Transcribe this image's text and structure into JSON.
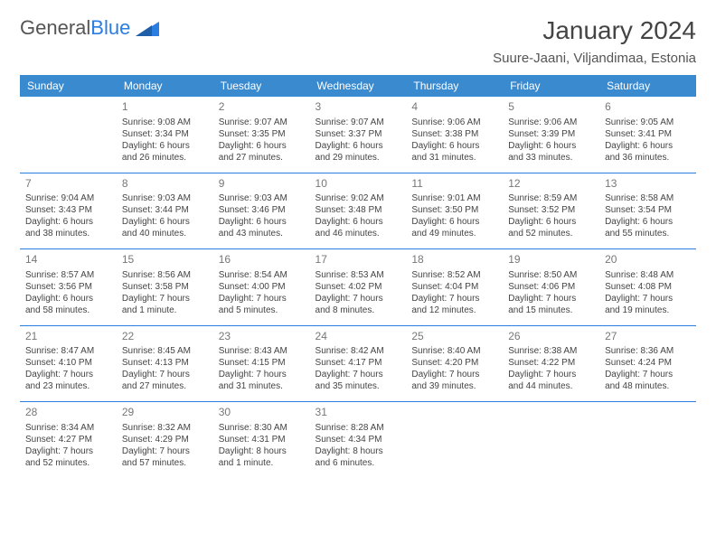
{
  "brand": {
    "name_part1": "General",
    "name_part2": "Blue"
  },
  "title": "January 2024",
  "location": "Suure-Jaani, Viljandimaa, Estonia",
  "colors": {
    "header_bg": "#3a8ad0",
    "rule": "#2a7de1",
    "text": "#444444",
    "muted": "#777777"
  },
  "day_headers": [
    "Sunday",
    "Monday",
    "Tuesday",
    "Wednesday",
    "Thursday",
    "Friday",
    "Saturday"
  ],
  "weeks": [
    [
      null,
      {
        "n": "1",
        "sr": "Sunrise: 9:08 AM",
        "ss": "Sunset: 3:34 PM",
        "d1": "Daylight: 6 hours",
        "d2": "and 26 minutes."
      },
      {
        "n": "2",
        "sr": "Sunrise: 9:07 AM",
        "ss": "Sunset: 3:35 PM",
        "d1": "Daylight: 6 hours",
        "d2": "and 27 minutes."
      },
      {
        "n": "3",
        "sr": "Sunrise: 9:07 AM",
        "ss": "Sunset: 3:37 PM",
        "d1": "Daylight: 6 hours",
        "d2": "and 29 minutes."
      },
      {
        "n": "4",
        "sr": "Sunrise: 9:06 AM",
        "ss": "Sunset: 3:38 PM",
        "d1": "Daylight: 6 hours",
        "d2": "and 31 minutes."
      },
      {
        "n": "5",
        "sr": "Sunrise: 9:06 AM",
        "ss": "Sunset: 3:39 PM",
        "d1": "Daylight: 6 hours",
        "d2": "and 33 minutes."
      },
      {
        "n": "6",
        "sr": "Sunrise: 9:05 AM",
        "ss": "Sunset: 3:41 PM",
        "d1": "Daylight: 6 hours",
        "d2": "and 36 minutes."
      }
    ],
    [
      {
        "n": "7",
        "sr": "Sunrise: 9:04 AM",
        "ss": "Sunset: 3:43 PM",
        "d1": "Daylight: 6 hours",
        "d2": "and 38 minutes."
      },
      {
        "n": "8",
        "sr": "Sunrise: 9:03 AM",
        "ss": "Sunset: 3:44 PM",
        "d1": "Daylight: 6 hours",
        "d2": "and 40 minutes."
      },
      {
        "n": "9",
        "sr": "Sunrise: 9:03 AM",
        "ss": "Sunset: 3:46 PM",
        "d1": "Daylight: 6 hours",
        "d2": "and 43 minutes."
      },
      {
        "n": "10",
        "sr": "Sunrise: 9:02 AM",
        "ss": "Sunset: 3:48 PM",
        "d1": "Daylight: 6 hours",
        "d2": "and 46 minutes."
      },
      {
        "n": "11",
        "sr": "Sunrise: 9:01 AM",
        "ss": "Sunset: 3:50 PM",
        "d1": "Daylight: 6 hours",
        "d2": "and 49 minutes."
      },
      {
        "n": "12",
        "sr": "Sunrise: 8:59 AM",
        "ss": "Sunset: 3:52 PM",
        "d1": "Daylight: 6 hours",
        "d2": "and 52 minutes."
      },
      {
        "n": "13",
        "sr": "Sunrise: 8:58 AM",
        "ss": "Sunset: 3:54 PM",
        "d1": "Daylight: 6 hours",
        "d2": "and 55 minutes."
      }
    ],
    [
      {
        "n": "14",
        "sr": "Sunrise: 8:57 AM",
        "ss": "Sunset: 3:56 PM",
        "d1": "Daylight: 6 hours",
        "d2": "and 58 minutes."
      },
      {
        "n": "15",
        "sr": "Sunrise: 8:56 AM",
        "ss": "Sunset: 3:58 PM",
        "d1": "Daylight: 7 hours",
        "d2": "and 1 minute."
      },
      {
        "n": "16",
        "sr": "Sunrise: 8:54 AM",
        "ss": "Sunset: 4:00 PM",
        "d1": "Daylight: 7 hours",
        "d2": "and 5 minutes."
      },
      {
        "n": "17",
        "sr": "Sunrise: 8:53 AM",
        "ss": "Sunset: 4:02 PM",
        "d1": "Daylight: 7 hours",
        "d2": "and 8 minutes."
      },
      {
        "n": "18",
        "sr": "Sunrise: 8:52 AM",
        "ss": "Sunset: 4:04 PM",
        "d1": "Daylight: 7 hours",
        "d2": "and 12 minutes."
      },
      {
        "n": "19",
        "sr": "Sunrise: 8:50 AM",
        "ss": "Sunset: 4:06 PM",
        "d1": "Daylight: 7 hours",
        "d2": "and 15 minutes."
      },
      {
        "n": "20",
        "sr": "Sunrise: 8:48 AM",
        "ss": "Sunset: 4:08 PM",
        "d1": "Daylight: 7 hours",
        "d2": "and 19 minutes."
      }
    ],
    [
      {
        "n": "21",
        "sr": "Sunrise: 8:47 AM",
        "ss": "Sunset: 4:10 PM",
        "d1": "Daylight: 7 hours",
        "d2": "and 23 minutes."
      },
      {
        "n": "22",
        "sr": "Sunrise: 8:45 AM",
        "ss": "Sunset: 4:13 PM",
        "d1": "Daylight: 7 hours",
        "d2": "and 27 minutes."
      },
      {
        "n": "23",
        "sr": "Sunrise: 8:43 AM",
        "ss": "Sunset: 4:15 PM",
        "d1": "Daylight: 7 hours",
        "d2": "and 31 minutes."
      },
      {
        "n": "24",
        "sr": "Sunrise: 8:42 AM",
        "ss": "Sunset: 4:17 PM",
        "d1": "Daylight: 7 hours",
        "d2": "and 35 minutes."
      },
      {
        "n": "25",
        "sr": "Sunrise: 8:40 AM",
        "ss": "Sunset: 4:20 PM",
        "d1": "Daylight: 7 hours",
        "d2": "and 39 minutes."
      },
      {
        "n": "26",
        "sr": "Sunrise: 8:38 AM",
        "ss": "Sunset: 4:22 PM",
        "d1": "Daylight: 7 hours",
        "d2": "and 44 minutes."
      },
      {
        "n": "27",
        "sr": "Sunrise: 8:36 AM",
        "ss": "Sunset: 4:24 PM",
        "d1": "Daylight: 7 hours",
        "d2": "and 48 minutes."
      }
    ],
    [
      {
        "n": "28",
        "sr": "Sunrise: 8:34 AM",
        "ss": "Sunset: 4:27 PM",
        "d1": "Daylight: 7 hours",
        "d2": "and 52 minutes."
      },
      {
        "n": "29",
        "sr": "Sunrise: 8:32 AM",
        "ss": "Sunset: 4:29 PM",
        "d1": "Daylight: 7 hours",
        "d2": "and 57 minutes."
      },
      {
        "n": "30",
        "sr": "Sunrise: 8:30 AM",
        "ss": "Sunset: 4:31 PM",
        "d1": "Daylight: 8 hours",
        "d2": "and 1 minute."
      },
      {
        "n": "31",
        "sr": "Sunrise: 8:28 AM",
        "ss": "Sunset: 4:34 PM",
        "d1": "Daylight: 8 hours",
        "d2": "and 6 minutes."
      },
      null,
      null,
      null
    ]
  ]
}
